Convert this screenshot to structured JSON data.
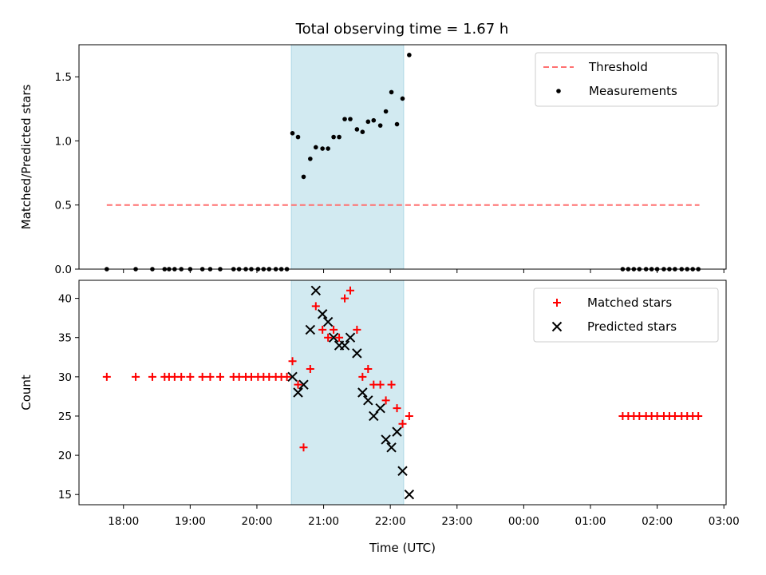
{
  "title": "Total observing time = 1.67 h",
  "colors": {
    "threshold": "#ff7070",
    "measurement": "#000000",
    "matched": "#ff0000",
    "predicted": "#000000",
    "observing_window": "#add8e6"
  },
  "chart_data": [
    {
      "type": "scatter",
      "ylabel": "Matched/Predicted stars",
      "xlim": [
        "17:20",
        "03:02"
      ],
      "ylim": [
        0,
        1.75
      ],
      "yticks": [
        0.0,
        0.5,
        1.0,
        1.5
      ],
      "ytick_labels": [
        "0.0",
        "0.5",
        "1.0",
        "1.5"
      ],
      "shaded_interval": [
        "20:31",
        "22:12"
      ],
      "legend_position": "top-right",
      "threshold": {
        "name": "Threshold",
        "value": 0.5,
        "x_range": [
          "17:45",
          "02:38"
        ],
        "style": "dashed"
      },
      "series": [
        {
          "name": "Measurements",
          "marker": "dot",
          "points": [
            [
              "17:45",
              0.0
            ],
            [
              "18:11",
              0.0
            ],
            [
              "18:26",
              0.0
            ],
            [
              "18:37",
              0.0
            ],
            [
              "18:41",
              0.0
            ],
            [
              "18:46",
              0.0
            ],
            [
              "18:52",
              0.0
            ],
            [
              "19:00",
              0.0
            ],
            [
              "19:11",
              0.0
            ],
            [
              "19:18",
              0.0
            ],
            [
              "19:27",
              0.0
            ],
            [
              "19:39",
              0.0
            ],
            [
              "19:44",
              0.0
            ],
            [
              "19:50",
              0.0
            ],
            [
              "19:55",
              0.0
            ],
            [
              "20:01",
              0.0
            ],
            [
              "20:06",
              0.0
            ],
            [
              "20:11",
              0.0
            ],
            [
              "20:17",
              0.0
            ],
            [
              "20:22",
              0.0
            ],
            [
              "20:27",
              0.0
            ],
            [
              "20:32",
              1.06
            ],
            [
              "20:37",
              1.03
            ],
            [
              "20:42",
              0.72
            ],
            [
              "20:48",
              0.86
            ],
            [
              "20:53",
              0.95
            ],
            [
              "20:59",
              0.94
            ],
            [
              "21:04",
              0.94
            ],
            [
              "21:09",
              1.03
            ],
            [
              "21:14",
              1.03
            ],
            [
              "21:19",
              1.17
            ],
            [
              "21:24",
              1.17
            ],
            [
              "21:30",
              1.09
            ],
            [
              "21:35",
              1.07
            ],
            [
              "21:40",
              1.15
            ],
            [
              "21:45",
              1.16
            ],
            [
              "21:51",
              1.12
            ],
            [
              "21:56",
              1.23
            ],
            [
              "22:01",
              1.38
            ],
            [
              "22:06",
              1.13
            ],
            [
              "22:11",
              1.33
            ],
            [
              "22:17",
              1.67
            ],
            [
              "01:29",
              0.0
            ],
            [
              "01:34",
              0.0
            ],
            [
              "01:39",
              0.0
            ],
            [
              "01:44",
              0.0
            ],
            [
              "01:50",
              0.0
            ],
            [
              "01:55",
              0.0
            ],
            [
              "02:00",
              0.0
            ],
            [
              "02:06",
              0.0
            ],
            [
              "02:11",
              0.0
            ],
            [
              "02:16",
              0.0
            ],
            [
              "02:22",
              0.0
            ],
            [
              "02:27",
              0.0
            ],
            [
              "02:32",
              0.0
            ],
            [
              "02:37",
              0.0
            ]
          ]
        }
      ]
    },
    {
      "type": "scatter",
      "xlabel": "Time (UTC)",
      "ylabel": "Count",
      "xlim": [
        "17:20",
        "03:02"
      ],
      "ylim": [
        13.7,
        42.3
      ],
      "yticks": [
        15,
        20,
        25,
        30,
        35,
        40
      ],
      "ytick_labels": [
        "15",
        "20",
        "25",
        "30",
        "35",
        "40"
      ],
      "xticks": [
        "18:00",
        "19:00",
        "20:00",
        "21:00",
        "22:00",
        "23:00",
        "00:00",
        "01:00",
        "02:00",
        "03:00"
      ],
      "xtick_labels": [
        "18:00",
        "19:00",
        "20:00",
        "21:00",
        "22:00",
        "23:00",
        "00:00",
        "01:00",
        "02:00",
        "03:00"
      ],
      "shaded_interval": [
        "20:31",
        "22:12"
      ],
      "legend_position": "top-right",
      "series": [
        {
          "name": "Matched stars",
          "marker": "plus",
          "points": [
            [
              "17:45",
              30
            ],
            [
              "18:11",
              30
            ],
            [
              "18:26",
              30
            ],
            [
              "18:37",
              30
            ],
            [
              "18:41",
              30
            ],
            [
              "18:46",
              30
            ],
            [
              "18:52",
              30
            ],
            [
              "19:00",
              30
            ],
            [
              "19:11",
              30
            ],
            [
              "19:18",
              30
            ],
            [
              "19:27",
              30
            ],
            [
              "19:39",
              30
            ],
            [
              "19:44",
              30
            ],
            [
              "19:50",
              30
            ],
            [
              "19:55",
              30
            ],
            [
              "20:01",
              30
            ],
            [
              "20:06",
              30
            ],
            [
              "20:11",
              30
            ],
            [
              "20:17",
              30
            ],
            [
              "20:22",
              30
            ],
            [
              "20:27",
              30
            ],
            [
              "20:32",
              32
            ],
            [
              "20:37",
              29
            ],
            [
              "20:42",
              21
            ],
            [
              "20:48",
              31
            ],
            [
              "20:53",
              39
            ],
            [
              "20:59",
              36
            ],
            [
              "21:04",
              35
            ],
            [
              "21:09",
              36
            ],
            [
              "21:14",
              35
            ],
            [
              "21:19",
              40
            ],
            [
              "21:24",
              41
            ],
            [
              "21:30",
              36
            ],
            [
              "21:35",
              30
            ],
            [
              "21:40",
              31
            ],
            [
              "21:45",
              29
            ],
            [
              "21:51",
              29
            ],
            [
              "21:56",
              27
            ],
            [
              "22:01",
              29
            ],
            [
              "22:06",
              26
            ],
            [
              "22:11",
              24
            ],
            [
              "22:17",
              25
            ],
            [
              "01:29",
              25
            ],
            [
              "01:34",
              25
            ],
            [
              "01:39",
              25
            ],
            [
              "01:44",
              25
            ],
            [
              "01:50",
              25
            ],
            [
              "01:55",
              25
            ],
            [
              "02:00",
              25
            ],
            [
              "02:06",
              25
            ],
            [
              "02:11",
              25
            ],
            [
              "02:16",
              25
            ],
            [
              "02:22",
              25
            ],
            [
              "02:27",
              25
            ],
            [
              "02:32",
              25
            ],
            [
              "02:37",
              25
            ]
          ]
        },
        {
          "name": "Predicted stars",
          "marker": "x",
          "points": [
            [
              "20:32",
              30
            ],
            [
              "20:37",
              28
            ],
            [
              "20:42",
              29
            ],
            [
              "20:48",
              36
            ],
            [
              "20:53",
              41
            ],
            [
              "20:59",
              38
            ],
            [
              "21:04",
              37
            ],
            [
              "21:09",
              35
            ],
            [
              "21:14",
              34
            ],
            [
              "21:19",
              34
            ],
            [
              "21:24",
              35
            ],
            [
              "21:30",
              33
            ],
            [
              "21:35",
              28
            ],
            [
              "21:40",
              27
            ],
            [
              "21:45",
              25
            ],
            [
              "21:51",
              26
            ],
            [
              "21:56",
              22
            ],
            [
              "22:01",
              21
            ],
            [
              "22:06",
              23
            ],
            [
              "22:11",
              18
            ],
            [
              "22:17",
              15
            ]
          ]
        }
      ]
    }
  ]
}
